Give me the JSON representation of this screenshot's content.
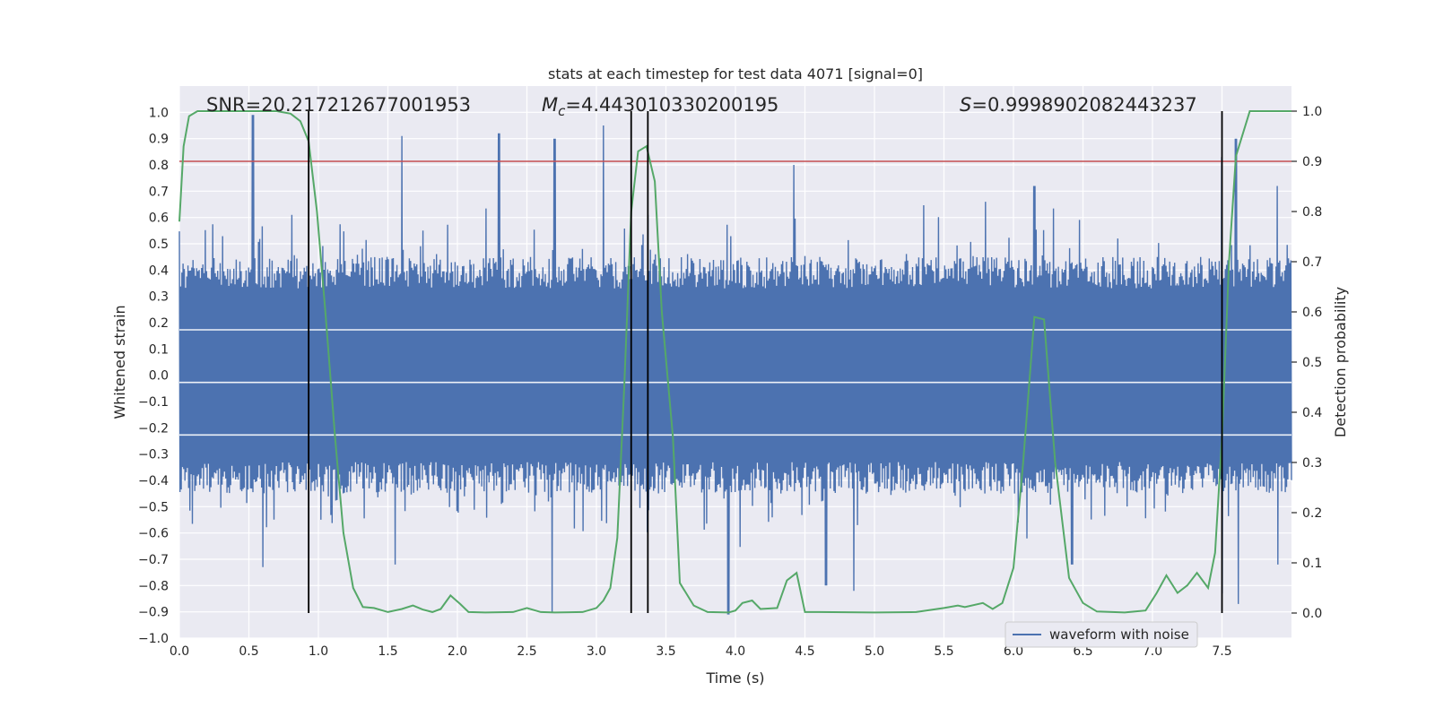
{
  "chart_data": {
    "type": "line",
    "title": "stats at each timestep for test data 4071 [signal=0]",
    "xlabel": "Time (s)",
    "ylabel": "Whitened strain",
    "y2label": "Detection probability",
    "xlim": [
      0.0,
      8.0
    ],
    "ylim": [
      -1.0,
      1.1
    ],
    "y2lim": [
      -0.05,
      1.05
    ],
    "grid": true,
    "legend_position": "lower-right",
    "x_ticks": [
      "0.0",
      "0.5",
      "1.0",
      "1.5",
      "2.0",
      "2.5",
      "3.0",
      "3.5",
      "4.0",
      "4.5",
      "5.0",
      "5.5",
      "6.0",
      "6.5",
      "7.0",
      "7.5"
    ],
    "y_ticks": [
      "1.0",
      "0.9",
      "0.8",
      "0.7",
      "0.6",
      "0.5",
      "0.4",
      "0.3",
      "0.2",
      "0.1",
      "0.0",
      "−0.1",
      "−0.2",
      "−0.3",
      "−0.4",
      "−0.5",
      "−0.6",
      "−0.7",
      "−0.8",
      "−0.9",
      "−1.0"
    ],
    "y2_ticks": [
      "1.0",
      "0.9",
      "0.8",
      "0.7",
      "0.6",
      "0.5",
      "0.4",
      "0.3",
      "0.2",
      "0.1",
      "0.0"
    ],
    "annotations": {
      "snr": "SNR=20.217212677001953",
      "mc_symbol": "M",
      "mc_sub": "c",
      "mc_value": "=4.443010330200195",
      "s_symbol": "S",
      "s_value": "=0.9998902082443237"
    },
    "series": [
      {
        "name": "waveform with noise",
        "color": "#4c72b0",
        "envelope": {
          "seed": 4071,
          "n": 1800,
          "core_amplitude": 0.33,
          "typical_amplitude": 0.45,
          "peaks_pos": [
            [
              0.53,
              0.99
            ],
            [
              0.81,
              0.61
            ],
            [
              1.6,
              0.91
            ],
            [
              2.3,
              0.92
            ],
            [
              2.7,
              0.9
            ],
            [
              3.05,
              0.95
            ],
            [
              3.37,
              0.61
            ],
            [
              4.42,
              0.8
            ],
            [
              5.8,
              0.66
            ],
            [
              6.15,
              0.72
            ],
            [
              7.5,
              0.83
            ],
            [
              7.6,
              0.9
            ],
            [
              7.9,
              0.72
            ]
          ],
          "peaks_neg": [
            [
              0.6,
              -0.73
            ],
            [
              1.55,
              -0.72
            ],
            [
              2.68,
              -0.9
            ],
            [
              3.95,
              -0.91
            ],
            [
              4.65,
              -0.8
            ],
            [
              4.85,
              -0.82
            ],
            [
              6.42,
              -0.72
            ],
            [
              7.5,
              -0.83
            ],
            [
              7.62,
              -0.87
            ],
            [
              7.9,
              -0.72
            ]
          ]
        }
      },
      {
        "name": "detection probability",
        "color": "#55a868",
        "x": [
          0.0,
          0.03,
          0.07,
          0.13,
          0.2,
          0.3,
          0.5,
          0.7,
          0.8,
          0.87,
          0.93,
          0.99,
          1.05,
          1.12,
          1.18,
          1.25,
          1.32,
          1.4,
          1.5,
          1.6,
          1.68,
          1.75,
          1.82,
          1.88,
          1.95,
          2.02,
          2.08,
          2.2,
          2.4,
          2.5,
          2.6,
          2.7,
          2.9,
          3.0,
          3.05,
          3.1,
          3.15,
          3.2,
          3.25,
          3.3,
          3.36,
          3.42,
          3.47,
          3.55,
          3.6,
          3.7,
          3.8,
          3.95,
          4.0,
          4.05,
          4.12,
          4.18,
          4.3,
          4.37,
          4.44,
          4.5,
          4.6,
          5.0,
          5.3,
          5.5,
          5.6,
          5.65,
          5.78,
          5.85,
          5.92,
          6.0,
          6.07,
          6.15,
          6.22,
          6.3,
          6.4,
          6.5,
          6.6,
          6.8,
          6.95,
          7.03,
          7.1,
          7.18,
          7.25,
          7.32,
          7.4,
          7.45,
          7.5,
          7.55,
          7.6,
          7.7,
          7.85,
          8.0
        ],
        "values": [
          0.78,
          0.93,
          0.99,
          1.0,
          1.0,
          1.0,
          1.0,
          1.0,
          0.995,
          0.98,
          0.94,
          0.8,
          0.6,
          0.35,
          0.16,
          0.05,
          0.012,
          0.01,
          0.002,
          0.008,
          0.015,
          0.007,
          0.002,
          0.008,
          0.035,
          0.018,
          0.002,
          0.001,
          0.002,
          0.01,
          0.002,
          0.001,
          0.002,
          0.01,
          0.025,
          0.05,
          0.15,
          0.45,
          0.8,
          0.92,
          0.93,
          0.86,
          0.6,
          0.35,
          0.06,
          0.015,
          0.002,
          0.001,
          0.005,
          0.02,
          0.025,
          0.008,
          0.01,
          0.065,
          0.08,
          0.002,
          0.002,
          0.001,
          0.002,
          0.01,
          0.015,
          0.012,
          0.02,
          0.008,
          0.02,
          0.09,
          0.3,
          0.59,
          0.585,
          0.3,
          0.07,
          0.02,
          0.003,
          0.001,
          0.005,
          0.04,
          0.075,
          0.04,
          0.055,
          0.08,
          0.05,
          0.12,
          0.35,
          0.7,
          0.91,
          1.0,
          1.0,
          1.0
        ]
      }
    ],
    "threshold": {
      "value": 0.9,
      "axis": "right",
      "color": "#c44e52"
    },
    "vertical_markers": [
      0.93,
      3.25,
      3.37,
      7.5
    ],
    "vertical_marker_color": "#000000",
    "colors": {
      "background": "#eaeaf2",
      "grid": "#ffffff"
    }
  }
}
